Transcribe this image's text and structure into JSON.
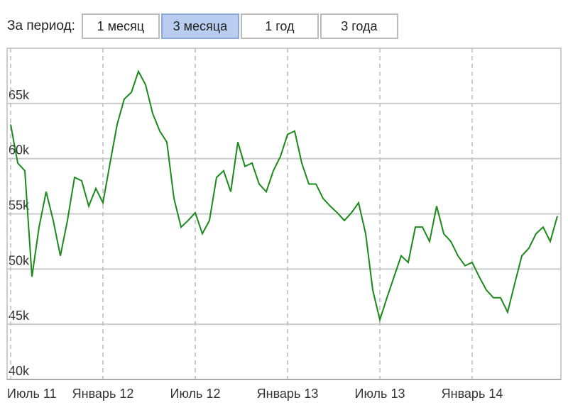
{
  "controls": {
    "label": "За период:",
    "buttons": [
      "1 месяц",
      "3 месяца",
      "1 год",
      "3 года"
    ],
    "selected": 1
  },
  "chart_data": {
    "type": "line",
    "color": "#1a8a1a",
    "categories": [
      "Июль 11",
      null,
      null,
      null,
      null,
      null,
      null,
      null,
      null,
      null,
      null,
      null,
      null,
      "Январь 12",
      null,
      null,
      null,
      null,
      null,
      null,
      null,
      null,
      null,
      null,
      null,
      null,
      "Июль 12",
      null,
      null,
      null,
      null,
      null,
      null,
      null,
      null,
      null,
      null,
      null,
      null,
      "Январь 13",
      null,
      null,
      null,
      null,
      null,
      null,
      null,
      null,
      null,
      null,
      null,
      null,
      "Июль 13",
      null,
      null,
      null,
      null,
      null,
      null,
      null,
      null,
      null,
      null,
      null,
      null,
      "Январь 14",
      null,
      null,
      null,
      null,
      null,
      null,
      null,
      null,
      null,
      null,
      null,
      null
    ],
    "values": [
      63100,
      59600,
      58900,
      49300,
      53800,
      57000,
      54400,
      51200,
      54400,
      58300,
      58000,
      55700,
      57300,
      56000,
      59600,
      63100,
      65400,
      66000,
      67900,
      66700,
      64100,
      62500,
      61500,
      56400,
      53800,
      54400,
      55100,
      53200,
      54400,
      58300,
      58900,
      57000,
      61500,
      59300,
      59600,
      57700,
      57000,
      58900,
      60200,
      62200,
      62500,
      59600,
      57700,
      57700,
      56400,
      55700,
      55100,
      54400,
      55100,
      56000,
      53200,
      48100,
      45400,
      47400,
      49300,
      51200,
      50600,
      53800,
      53800,
      52500,
      55700,
      53200,
      52500,
      51200,
      50300,
      50600,
      49300,
      48100,
      47400,
      47400,
      46100,
      48700,
      51200,
      51900,
      53200,
      53800,
      52500,
      54800
    ],
    "ylim": [
      40000,
      70000
    ],
    "yticks": [
      {
        "value": 40000,
        "label": "40k"
      },
      {
        "value": 45000,
        "label": "45k"
      },
      {
        "value": 50000,
        "label": "50k"
      },
      {
        "value": 55000,
        "label": "55k"
      },
      {
        "value": 60000,
        "label": "60k"
      },
      {
        "value": 65000,
        "label": "65k"
      }
    ],
    "grid": true
  }
}
